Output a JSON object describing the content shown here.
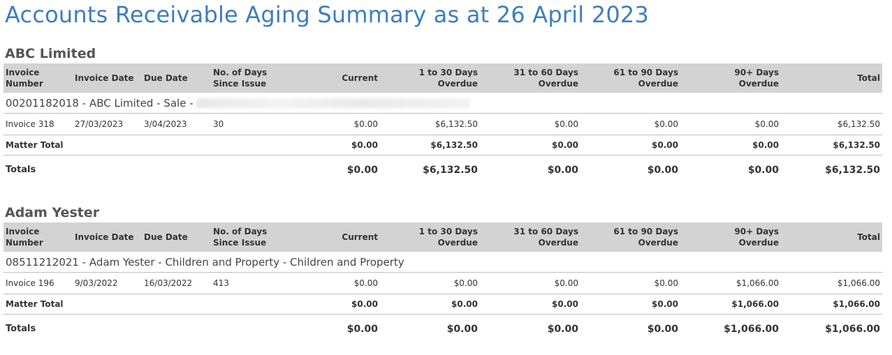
{
  "report": {
    "title": "Accounts Receivable Aging Summary as at 26 April 2023"
  },
  "columns": {
    "invoice_number": [
      "Invoice",
      "Number"
    ],
    "invoice_date": "Invoice Date",
    "due_date": "Due Date",
    "days": [
      "No. of Days",
      "Since Issue"
    ],
    "current": "Current",
    "d1_30": [
      "1 to 30 Days",
      "Overdue"
    ],
    "d31_60": [
      "31 to 60 Days",
      "Overdue"
    ],
    "d61_90": [
      "61 to 90 Days",
      "Overdue"
    ],
    "d90_plus": [
      "90+ Days",
      "Overdue"
    ],
    "total": "Total"
  },
  "clients": [
    {
      "name": "ABC Limited",
      "matter": "00201182018 - ABC Limited - Sale -",
      "matter_redacted": true,
      "invoice": {
        "number": "Invoice 318",
        "date": "27/03/2023",
        "due": "3/04/2023",
        "days": "30",
        "current": "$0.00",
        "d1_30": "$6,132.50",
        "d31_60": "$0.00",
        "d61_90": "$0.00",
        "d90_plus": "$0.00",
        "total": "$6,132.50"
      },
      "matter_total": {
        "label": "Matter Total",
        "current": "$0.00",
        "d1_30": "$6,132.50",
        "d31_60": "$0.00",
        "d61_90": "$0.00",
        "d90_plus": "$0.00",
        "total": "$6,132.50"
      },
      "totals": {
        "label": "Totals",
        "current": "$0.00",
        "d1_30": "$6,132.50",
        "d31_60": "$0.00",
        "d61_90": "$0.00",
        "d90_plus": "$0.00",
        "total": "$6,132.50"
      }
    },
    {
      "name": "Adam Yester",
      "matter": "08511212021 - Adam Yester - Children and Property - Children and Property",
      "matter_redacted": false,
      "invoice": {
        "number": "Invoice 196",
        "date": "9/03/2022",
        "due": "16/03/2022",
        "days": "413",
        "current": "$0.00",
        "d1_30": "$0.00",
        "d31_60": "$0.00",
        "d61_90": "$0.00",
        "d90_plus": "$1,066.00",
        "total": "$1,066.00"
      },
      "matter_total": {
        "label": "Matter Total",
        "current": "$0.00",
        "d1_30": "$0.00",
        "d31_60": "$0.00",
        "d61_90": "$0.00",
        "d90_plus": "$1,066.00",
        "total": "$1,066.00"
      },
      "totals": {
        "label": "Totals",
        "current": "$0.00",
        "d1_30": "$0.00",
        "d31_60": "$0.00",
        "d61_90": "$0.00",
        "d90_plus": "$1,066.00",
        "total": "$1,066.00"
      }
    }
  ]
}
